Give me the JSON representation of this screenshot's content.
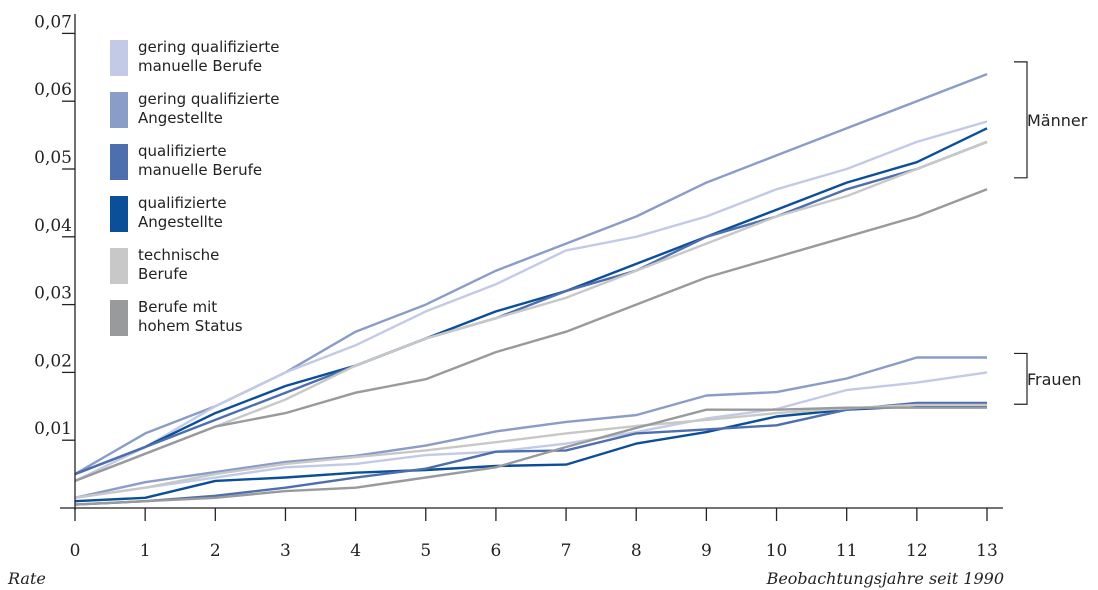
{
  "chart_data": {
    "type": "line",
    "xlabel": "Beobachtungsjahre seit 1990",
    "ylabel": "Rate",
    "x": [
      0,
      1,
      2,
      3,
      4,
      5,
      6,
      7,
      8,
      9,
      10,
      11,
      12,
      13
    ],
    "xticks": [
      "0",
      "1",
      "2",
      "3",
      "4",
      "5",
      "6",
      "7",
      "8",
      "9",
      "10",
      "11",
      "12",
      "13"
    ],
    "yticks": [
      {
        "value": 0.01,
        "label": "0,01"
      },
      {
        "value": 0.02,
        "label": "0,02"
      },
      {
        "value": 0.03,
        "label": "0,03"
      },
      {
        "value": 0.04,
        "label": "0,04"
      },
      {
        "value": 0.05,
        "label": "0,05"
      },
      {
        "value": 0.06,
        "label": "0,06"
      },
      {
        "value": 0.07,
        "label": "0,07"
      }
    ],
    "xlim": [
      0,
      13
    ],
    "ylim": [
      0,
      0.072
    ],
    "grid": false,
    "legend_position": "top-left",
    "legend": [
      {
        "key": "gqm",
        "line1": "gering qualifizierte",
        "line2": "manuelle Berufe",
        "color": "#c3cae6"
      },
      {
        "key": "gqa",
        "line1": "gering qualifizierte",
        "line2": "Angestellte",
        "color": "#8a9cc8"
      },
      {
        "key": "qm",
        "line1": "qualifizierte",
        "line2": "manuelle Berufe",
        "color": "#4d6fad"
      },
      {
        "key": "qa",
        "line1": "qualifizierte",
        "line2": "Angestellte",
        "color": "#0c4f99"
      },
      {
        "key": "tb",
        "line1": "technische",
        "line2": "Berufe",
        "color": "#c8c8c8"
      },
      {
        "key": "hs",
        "line1": "Berufe mit",
        "line2": "hohem Status",
        "color": "#999a9c"
      }
    ],
    "groups": [
      {
        "label": "Männer",
        "from": 0.0487,
        "to": 0.0658
      },
      {
        "label": "Frauen",
        "from": 0.0153,
        "to": 0.0228
      }
    ],
    "series": [
      {
        "key": "gqa",
        "group": "Männer",
        "color": "#8a9cc8",
        "values": [
          0.005,
          0.011,
          0.015,
          0.02,
          0.026,
          0.03,
          0.035,
          0.039,
          0.043,
          0.048,
          0.052,
          0.056,
          0.06,
          0.064
        ]
      },
      {
        "key": "gqm",
        "group": "Männer",
        "color": "#c3cae6",
        "values": [
          0.004,
          0.009,
          0.015,
          0.02,
          0.024,
          0.029,
          0.033,
          0.038,
          0.04,
          0.043,
          0.047,
          0.05,
          0.054,
          0.057
        ]
      },
      {
        "key": "qa",
        "group": "Männer",
        "color": "#0c4f99",
        "values": [
          0.005,
          0.009,
          0.014,
          0.018,
          0.021,
          0.025,
          0.029,
          0.032,
          0.036,
          0.04,
          0.044,
          0.048,
          0.051,
          0.056
        ]
      },
      {
        "key": "qm",
        "group": "Männer",
        "color": "#4d6fad",
        "values": [
          0.005,
          0.009,
          0.013,
          0.017,
          0.021,
          0.025,
          0.028,
          0.032,
          0.035,
          0.04,
          0.043,
          0.047,
          0.05,
          0.054
        ]
      },
      {
        "key": "tb",
        "group": "Männer",
        "color": "#c8c8c8",
        "values": [
          0.004,
          0.008,
          0.012,
          0.016,
          0.021,
          0.025,
          0.028,
          0.031,
          0.035,
          0.039,
          0.043,
          0.046,
          0.05,
          0.054
        ]
      },
      {
        "key": "hs",
        "group": "Männer",
        "color": "#999a9c",
        "values": [
          0.004,
          0.008,
          0.012,
          0.014,
          0.017,
          0.019,
          0.023,
          0.026,
          0.03,
          0.034,
          0.037,
          0.04,
          0.043,
          0.047
        ]
      },
      {
        "key": "gqa",
        "group": "Frauen",
        "color": "#8a9cc8",
        "values": [
          0.0015,
          0.0038,
          0.0053,
          0.0068,
          0.0077,
          0.0092,
          0.0113,
          0.0127,
          0.0137,
          0.0166,
          0.0171,
          0.0191,
          0.0222,
          0.0222
        ]
      },
      {
        "key": "gqm",
        "group": "Frauen",
        "color": "#c3cae6",
        "values": [
          0.0015,
          0.003,
          0.0045,
          0.006,
          0.0065,
          0.0078,
          0.0083,
          0.0095,
          0.0112,
          0.0132,
          0.0146,
          0.0174,
          0.0185,
          0.02
        ]
      },
      {
        "key": "qa",
        "group": "Frauen",
        "color": "#0c4f99",
        "values": [
          0.001,
          0.0015,
          0.004,
          0.0045,
          0.0052,
          0.0056,
          0.0062,
          0.0064,
          0.0095,
          0.0112,
          0.0135,
          0.0145,
          0.015,
          0.015
        ]
      },
      {
        "key": "qm",
        "group": "Frauen",
        "color": "#4d6fad",
        "values": [
          0.0005,
          0.001,
          0.0018,
          0.003,
          0.0045,
          0.0058,
          0.0083,
          0.0085,
          0.011,
          0.0116,
          0.0122,
          0.0145,
          0.0155,
          0.0155
        ]
      },
      {
        "key": "tb",
        "group": "Frauen",
        "color": "#c8c8c8",
        "values": [
          0.0015,
          0.003,
          0.005,
          0.0065,
          0.0075,
          0.0085,
          0.0097,
          0.011,
          0.0121,
          0.013,
          0.014,
          0.0147,
          0.0152,
          0.0152
        ]
      },
      {
        "key": "hs",
        "group": "Frauen",
        "color": "#999a9c",
        "values": [
          0.0005,
          0.001,
          0.0015,
          0.0025,
          0.003,
          0.0045,
          0.006,
          0.009,
          0.0118,
          0.0145,
          0.0145,
          0.0148,
          0.0148,
          0.0148
        ]
      }
    ]
  }
}
